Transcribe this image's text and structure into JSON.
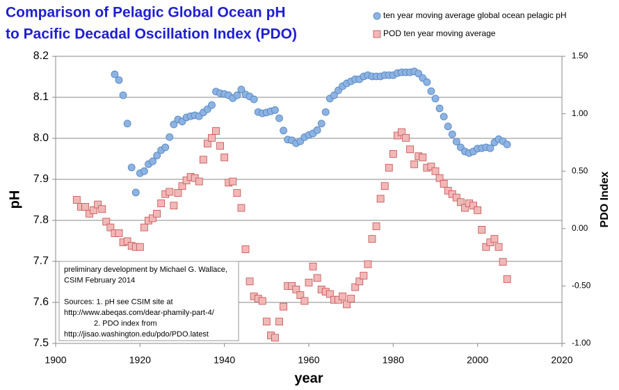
{
  "chart_data": {
    "type": "scatter",
    "title": [
      "Comparison of Pelagic Global Ocean pH",
      "to Pacific Decadal Oscillation Index (PDO)"
    ],
    "xlabel": "year",
    "ylabel": "pH",
    "y2label": "PDO Index",
    "annotation": [
      "preliminary development by Michael G. Wallace,",
      "CSIM  February 2014",
      "",
      "Sources:  1.  pH see CSIM site at",
      "http://www.abeqas.com/dear-phamily-part-4/",
      "2. PDO index from",
      "http://jisao.washington.edu/pdo/PDO.latest"
    ],
    "xlim": [
      1900,
      2020
    ],
    "xticks": [
      1900,
      1920,
      1940,
      1960,
      1980,
      2000,
      2020
    ],
    "ylim": [
      7.5,
      8.2
    ],
    "yticks": [
      {
        "value": 7.5,
        "label": "7.5"
      },
      {
        "value": 7.6,
        "label": "7.6"
      },
      {
        "value": 7.7,
        "label": "7.7"
      },
      {
        "value": 7.8,
        "label": "7.8"
      },
      {
        "value": 7.9,
        "label": "7.9"
      },
      {
        "value": 8,
        "label": "8.0"
      },
      {
        "value": 8.1,
        "label": "8.1"
      },
      {
        "value": 8.2,
        "label": "8.2"
      }
    ],
    "y2lim": [
      -1,
      1.5
    ],
    "y2ticks": [
      {
        "value": -1,
        "label": "-1.00"
      },
      {
        "value": -0.5,
        "label": "-0.50"
      },
      {
        "value": 0,
        "label": "0.00"
      },
      {
        "value": 0.5,
        "label": "0.50"
      },
      {
        "value": 1,
        "label": "1.00"
      },
      {
        "value": 1.5,
        "label": "1.50"
      }
    ],
    "grid": true,
    "legend": "top-right",
    "series": [
      {
        "name": "ten year moving average global ocean pelagic pH",
        "color": "#8db3e2",
        "marker": "circle",
        "axis": "y",
        "x": [
          1914,
          1915,
          1916,
          1917,
          1918,
          1919,
          1920,
          1921,
          1922,
          1923,
          1924,
          1925,
          1926,
          1927,
          1928,
          1929,
          1930,
          1931,
          1932,
          1933,
          1934,
          1935,
          1936,
          1937,
          1938,
          1939,
          1940,
          1941,
          1942,
          1943,
          1944,
          1945,
          1946,
          1947,
          1948,
          1949,
          1950,
          1951,
          1952,
          1953,
          1954,
          1955,
          1956,
          1957,
          1958,
          1959,
          1960,
          1961,
          1962,
          1963,
          1964,
          1965,
          1966,
          1967,
          1968,
          1969,
          1970,
          1971,
          1972,
          1973,
          1974,
          1975,
          1976,
          1977,
          1978,
          1979,
          1980,
          1981,
          1982,
          1983,
          1984,
          1985,
          1986,
          1987,
          1988,
          1989,
          1990,
          1991,
          1992,
          1993,
          1994,
          1995,
          1996,
          1997,
          1998,
          1999,
          2000,
          2001,
          2002,
          2003,
          2004,
          2005,
          2006,
          2007
        ],
        "values": [
          8.156,
          8.142,
          8.105,
          8.036,
          7.929,
          7.868,
          7.915,
          7.92,
          7.937,
          7.944,
          7.958,
          7.971,
          7.978,
          8.003,
          8.034,
          8.046,
          8.041,
          8.051,
          8.054,
          8.056,
          8.054,
          8.063,
          8.071,
          8.081,
          8.114,
          8.11,
          8.108,
          8.105,
          8.098,
          8.105,
          8.119,
          8.107,
          8.102,
          8.095,
          8.064,
          8.061,
          8.063,
          8.066,
          8.069,
          8.049,
          8.019,
          7.997,
          7.995,
          7.988,
          7.993,
          8.003,
          8.008,
          8.012,
          8.02,
          8.036,
          8.064,
          8.097,
          8.105,
          8.117,
          8.127,
          8.134,
          8.139,
          8.144,
          8.144,
          8.151,
          8.154,
          8.151,
          8.151,
          8.151,
          8.154,
          8.154,
          8.154,
          8.159,
          8.161,
          8.161,
          8.161,
          8.163,
          8.158,
          8.147,
          8.137,
          8.115,
          8.097,
          8.073,
          8.053,
          8.029,
          8.01,
          7.992,
          7.978,
          7.968,
          7.964,
          7.968,
          7.975,
          7.976,
          7.978,
          7.976,
          7.99,
          7.998,
          7.993,
          7.985
        ]
      },
      {
        "name": "POD ten year moving average",
        "color": "#f2b8b8",
        "marker": "square",
        "axis": "y2",
        "x": [
          1905,
          1906,
          1907,
          1908,
          1909,
          1910,
          1911,
          1912,
          1913,
          1914,
          1915,
          1916,
          1917,
          1918,
          1919,
          1920,
          1921,
          1922,
          1923,
          1924,
          1925,
          1926,
          1927,
          1928,
          1929,
          1930,
          1931,
          1932,
          1933,
          1934,
          1935,
          1936,
          1937,
          1938,
          1939,
          1940,
          1941,
          1942,
          1943,
          1944,
          1945,
          1946,
          1947,
          1948,
          1949,
          1950,
          1951,
          1952,
          1953,
          1954,
          1955,
          1956,
          1957,
          1958,
          1959,
          1960,
          1961,
          1962,
          1963,
          1964,
          1965,
          1966,
          1967,
          1968,
          1969,
          1970,
          1971,
          1972,
          1973,
          1974,
          1975,
          1976,
          1977,
          1978,
          1979,
          1980,
          1981,
          1982,
          1983,
          1984,
          1985,
          1986,
          1987,
          1988,
          1989,
          1990,
          1991,
          1992,
          1993,
          1994,
          1995,
          1996,
          1997,
          1998,
          1999,
          2000,
          2001,
          2002,
          2003,
          2004,
          2005,
          2006,
          2007
        ],
        "values": [
          0.25,
          0.19,
          0.19,
          0.13,
          0.16,
          0.21,
          0.17,
          0.06,
          0.01,
          -0.04,
          -0.04,
          -0.12,
          -0.11,
          -0.15,
          -0.16,
          -0.16,
          0.01,
          0.07,
          0.09,
          0.13,
          0.22,
          0.3,
          0.32,
          0.2,
          0.31,
          0.37,
          0.42,
          0.45,
          0.44,
          0.41,
          0.6,
          0.74,
          0.79,
          0.85,
          0.72,
          0.62,
          0.4,
          0.41,
          0.31,
          0.18,
          -0.18,
          -0.46,
          -0.59,
          -0.61,
          -0.63,
          -0.81,
          -0.93,
          -0.95,
          -0.81,
          -0.68,
          -0.5,
          -0.5,
          -0.53,
          -0.58,
          -0.63,
          -0.47,
          -0.33,
          -0.43,
          -0.53,
          -0.55,
          -0.57,
          -0.62,
          -0.62,
          -0.59,
          -0.66,
          -0.61,
          -0.51,
          -0.46,
          -0.41,
          -0.31,
          -0.09,
          0.02,
          0.26,
          0.37,
          0.53,
          0.65,
          0.81,
          0.84,
          0.79,
          0.69,
          0.56,
          0.63,
          0.62,
          0.53,
          0.54,
          0.5,
          0.44,
          0.39,
          0.33,
          0.3,
          0.27,
          0.23,
          0.18,
          0.22,
          0.2,
          0.16,
          -0.01,
          -0.16,
          -0.12,
          -0.09,
          -0.16,
          -0.29,
          -0.44
        ]
      }
    ]
  }
}
